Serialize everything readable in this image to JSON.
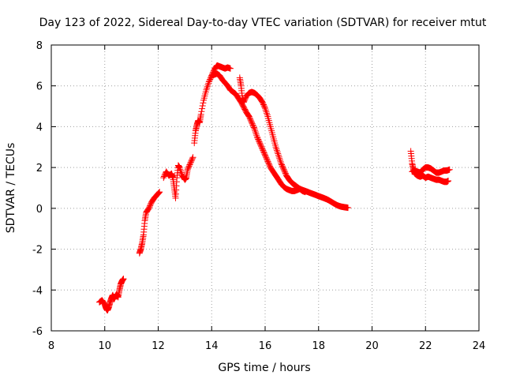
{
  "chart_data": {
    "type": "scatter",
    "title": "Day 123 of 2022, Sidereal Day-to-day VTEC variation (SDTVAR) for receiver mtut",
    "xlabel": "GPS time / hours",
    "ylabel": "SDTVAR / TECUs",
    "xlim": [
      8,
      24
    ],
    "ylim": [
      -6,
      8
    ],
    "xticks": [
      8,
      10,
      12,
      14,
      16,
      18,
      20,
      22,
      24
    ],
    "yticks": [
      -6,
      -4,
      -2,
      0,
      2,
      4,
      6,
      8
    ],
    "grid": true,
    "marker": "+",
    "series_color": "#ff0000",
    "series": [
      {
        "name": "SDTVAR",
        "segments": [
          [
            [
              9.8,
              -4.6
            ],
            [
              9.9,
              -4.5
            ],
            [
              10.0,
              -4.7
            ],
            [
              10.05,
              -4.9
            ],
            [
              10.1,
              -5.0
            ],
            [
              10.15,
              -4.85
            ],
            [
              10.2,
              -4.6
            ],
            [
              10.25,
              -4.4
            ],
            [
              10.3,
              -4.25
            ],
            [
              10.35,
              -4.45
            ],
            [
              10.4,
              -4.3
            ],
            [
              10.45,
              -4.2
            ],
            [
              10.5,
              -4.35
            ],
            [
              10.55,
              -4.0
            ],
            [
              10.6,
              -3.7
            ],
            [
              10.65,
              -3.55
            ],
            [
              10.7,
              -3.45
            ]
          ],
          [
            [
              11.3,
              -2.2
            ],
            [
              11.35,
              -2.0
            ],
            [
              11.4,
              -1.7
            ],
            [
              11.45,
              -1.3
            ],
            [
              11.5,
              -0.6
            ],
            [
              11.55,
              -0.2
            ],
            [
              11.65,
              0.0
            ],
            [
              11.75,
              0.3
            ],
            [
              11.85,
              0.5
            ],
            [
              11.95,
              0.65
            ],
            [
              12.05,
              0.8
            ]
          ],
          [
            [
              12.2,
              1.5
            ],
            [
              12.3,
              1.8
            ],
            [
              12.4,
              1.6
            ],
            [
              12.5,
              1.7
            ],
            [
              12.55,
              1.5
            ],
            [
              12.6,
              1.0
            ],
            [
              12.65,
              0.5
            ],
            [
              12.7,
              1.5
            ],
            [
              12.75,
              2.1
            ],
            [
              12.8,
              2.0
            ],
            [
              12.9,
              1.6
            ],
            [
              13.0,
              1.4
            ],
            [
              13.05,
              1.5
            ],
            [
              13.1,
              1.9
            ],
            [
              13.2,
              2.2
            ],
            [
              13.3,
              2.5
            ]
          ],
          [
            [
              13.35,
              3.2
            ],
            [
              13.4,
              3.8
            ],
            [
              13.45,
              4.1
            ],
            [
              13.5,
              4.3
            ],
            [
              13.55,
              4.2
            ],
            [
              13.6,
              4.6
            ],
            [
              13.7,
              5.3
            ],
            [
              13.8,
              5.8
            ],
            [
              13.9,
              6.2
            ],
            [
              14.0,
              6.5
            ],
            [
              14.1,
              6.8
            ],
            [
              14.2,
              7.0
            ],
            [
              14.3,
              6.95
            ],
            [
              14.4,
              6.9
            ],
            [
              14.5,
              6.85
            ],
            [
              14.6,
              6.9
            ],
            [
              14.7,
              6.85
            ]
          ],
          [
            [
              14.0,
              6.5
            ],
            [
              14.1,
              6.55
            ],
            [
              14.2,
              6.6
            ],
            [
              14.3,
              6.5
            ],
            [
              14.4,
              6.3
            ],
            [
              14.5,
              6.15
            ],
            [
              14.6,
              6.0
            ],
            [
              14.7,
              5.8
            ],
            [
              14.8,
              5.7
            ],
            [
              14.9,
              5.6
            ],
            [
              15.0,
              5.4
            ],
            [
              15.1,
              5.2
            ],
            [
              15.2,
              4.95
            ],
            [
              15.3,
              4.7
            ],
            [
              15.4,
              4.5
            ],
            [
              15.5,
              4.2
            ],
            [
              15.6,
              3.9
            ],
            [
              15.7,
              3.5
            ],
            [
              15.8,
              3.2
            ],
            [
              15.9,
              2.9
            ],
            [
              16.0,
              2.6
            ],
            [
              16.1,
              2.3
            ],
            [
              16.2,
              2.0
            ],
            [
              16.3,
              1.8
            ],
            [
              16.4,
              1.6
            ],
            [
              16.5,
              1.4
            ],
            [
              16.6,
              1.2
            ],
            [
              16.7,
              1.05
            ],
            [
              16.8,
              0.95
            ],
            [
              16.9,
              0.9
            ],
            [
              17.0,
              0.85
            ],
            [
              17.1,
              0.85
            ],
            [
              17.2,
              0.9
            ],
            [
              17.3,
              0.95
            ],
            [
              17.4,
              0.9
            ],
            [
              17.5,
              0.85
            ],
            [
              17.6,
              0.8
            ],
            [
              17.7,
              0.75
            ],
            [
              17.8,
              0.7
            ],
            [
              17.9,
              0.65
            ],
            [
              18.0,
              0.6
            ],
            [
              18.1,
              0.55
            ],
            [
              18.2,
              0.5
            ],
            [
              18.3,
              0.45
            ],
            [
              18.4,
              0.38
            ],
            [
              18.5,
              0.3
            ],
            [
              18.6,
              0.22
            ],
            [
              18.7,
              0.15
            ],
            [
              18.8,
              0.1
            ],
            [
              18.9,
              0.07
            ],
            [
              19.0,
              0.05
            ],
            [
              19.1,
              0.03
            ]
          ],
          [
            [
              15.05,
              6.4
            ],
            [
              15.1,
              6.0
            ],
            [
              15.15,
              5.4
            ],
            [
              15.2,
              5.2
            ],
            [
              15.3,
              5.5
            ],
            [
              15.4,
              5.65
            ],
            [
              15.5,
              5.7
            ],
            [
              15.6,
              5.65
            ],
            [
              15.7,
              5.55
            ],
            [
              15.8,
              5.4
            ],
            [
              15.9,
              5.2
            ],
            [
              16.0,
              4.9
            ],
            [
              16.1,
              4.5
            ],
            [
              16.2,
              4.0
            ],
            [
              16.3,
              3.5
            ],
            [
              16.4,
              3.0
            ],
            [
              16.5,
              2.6
            ],
            [
              16.6,
              2.2
            ],
            [
              16.7,
              1.9
            ],
            [
              16.8,
              1.6
            ],
            [
              16.9,
              1.4
            ],
            [
              17.0,
              1.25
            ],
            [
              17.1,
              1.15
            ],
            [
              17.2,
              1.05
            ],
            [
              17.3,
              0.95
            ],
            [
              17.4,
              0.85
            ],
            [
              17.5,
              0.8
            ]
          ],
          [
            [
              21.45,
              2.8
            ],
            [
              21.5,
              2.2
            ],
            [
              21.55,
              1.9
            ],
            [
              21.6,
              1.7
            ],
            [
              21.7,
              1.6
            ],
            [
              21.8,
              1.55
            ],
            [
              21.9,
              1.6
            ],
            [
              22.0,
              1.5
            ],
            [
              22.1,
              1.55
            ],
            [
              22.2,
              1.5
            ],
            [
              22.3,
              1.45
            ],
            [
              22.4,
              1.4
            ],
            [
              22.5,
              1.4
            ],
            [
              22.6,
              1.35
            ],
            [
              22.7,
              1.3
            ],
            [
              22.8,
              1.3
            ],
            [
              22.85,
              1.35
            ]
          ],
          [
            [
              21.5,
              1.8
            ],
            [
              21.6,
              1.85
            ],
            [
              21.7,
              1.8
            ],
            [
              21.8,
              1.75
            ],
            [
              21.9,
              1.9
            ],
            [
              22.0,
              2.0
            ],
            [
              22.1,
              2.0
            ],
            [
              22.2,
              1.95
            ],
            [
              22.3,
              1.85
            ],
            [
              22.4,
              1.75
            ],
            [
              22.5,
              1.75
            ],
            [
              22.6,
              1.8
            ],
            [
              22.7,
              1.85
            ],
            [
              22.8,
              1.85
            ],
            [
              22.9,
              1.9
            ]
          ]
        ]
      }
    ]
  }
}
